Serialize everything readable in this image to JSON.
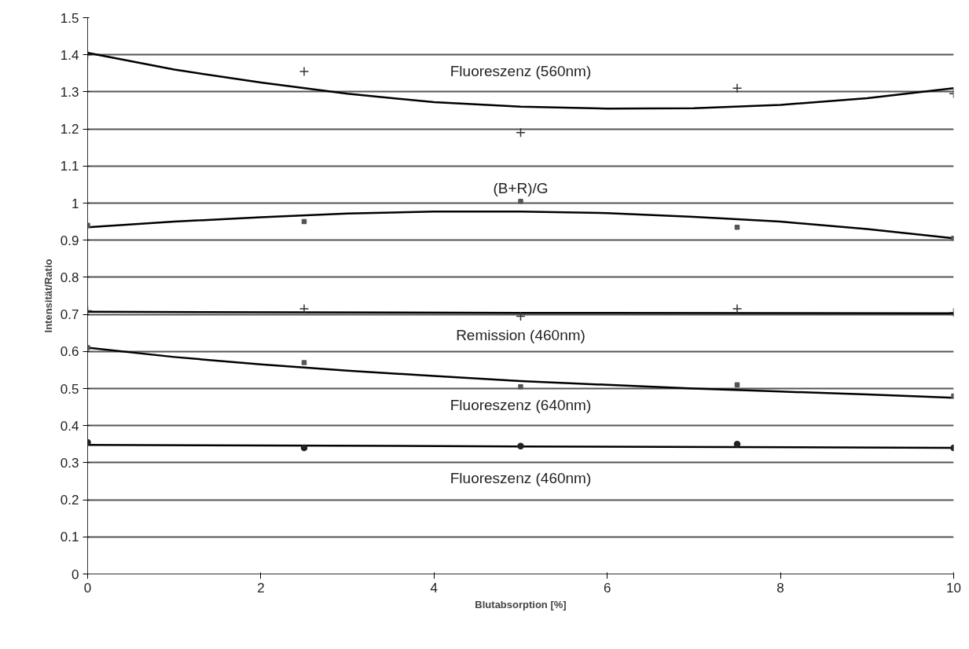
{
  "chart_data": {
    "type": "scatter",
    "xlabel": "Blutabsorption [%]",
    "ylabel": "Intensität/Ratio",
    "x": [
      0,
      2.5,
      5,
      7.5,
      10
    ],
    "xlim": [
      0,
      10
    ],
    "xticks": [
      0,
      2,
      4,
      6,
      8,
      10
    ],
    "ylim": [
      0,
      1.5
    ],
    "yticks": [
      0,
      0.1,
      0.2,
      0.3,
      0.4,
      0.5,
      0.6,
      0.7,
      0.8,
      0.9,
      1,
      1.1,
      1.2,
      1.3,
      1.4,
      1.5
    ],
    "grid": "y",
    "legend": false,
    "series": [
      {
        "marker": "cross",
        "color": "#333333",
        "values": [
          1.4,
          1.355,
          1.19,
          1.31,
          1.295
        ]
      },
      {
        "marker": "square",
        "color": "#555555",
        "values": [
          0.94,
          0.95,
          1.005,
          0.935,
          0.905
        ]
      },
      {
        "marker": "cross",
        "color": "#333333",
        "values": [
          0.71,
          0.715,
          0.695,
          0.715,
          0.705
        ]
      },
      {
        "marker": "square",
        "color": "#555555",
        "values": [
          0.61,
          0.57,
          0.505,
          0.51,
          0.48
        ]
      },
      {
        "marker": "circle",
        "color": "#222222",
        "values": [
          0.355,
          0.34,
          0.345,
          0.35,
          0.34
        ]
      },
      {
        "type": "line",
        "name": "Fluoreszenz (560nm)",
        "color": "#000000",
        "x": [
          0,
          1,
          2,
          3,
          4,
          5,
          6,
          7,
          8,
          9,
          10
        ],
        "values": [
          1.405,
          1.36,
          1.325,
          1.295,
          1.272,
          1.26,
          1.255,
          1.256,
          1.265,
          1.283,
          1.31
        ]
      },
      {
        "type": "line",
        "name": "(B+R)/G",
        "color": "#000000",
        "x": [
          0,
          1,
          2,
          3,
          4,
          5,
          6,
          7,
          8,
          9,
          10
        ],
        "values": [
          0.935,
          0.95,
          0.962,
          0.972,
          0.977,
          0.977,
          0.973,
          0.963,
          0.95,
          0.93,
          0.905
        ]
      },
      {
        "type": "line",
        "name": "Remission (460nm)",
        "color": "#000000",
        "x": [
          0,
          5,
          10
        ],
        "values": [
          0.707,
          0.704,
          0.703
        ]
      },
      {
        "type": "line",
        "name": "Fluoreszenz (640nm)",
        "color": "#000000",
        "x": [
          0,
          1,
          2,
          3,
          4,
          5,
          6,
          7,
          8,
          9,
          10
        ],
        "values": [
          0.61,
          0.585,
          0.565,
          0.548,
          0.534,
          0.52,
          0.51,
          0.5,
          0.492,
          0.484,
          0.475
        ]
      },
      {
        "type": "line",
        "name": "Fluoreszenz (460nm)",
        "color": "#000000",
        "x": [
          0,
          5,
          10
        ],
        "values": [
          0.348,
          0.344,
          0.34
        ]
      }
    ]
  }
}
